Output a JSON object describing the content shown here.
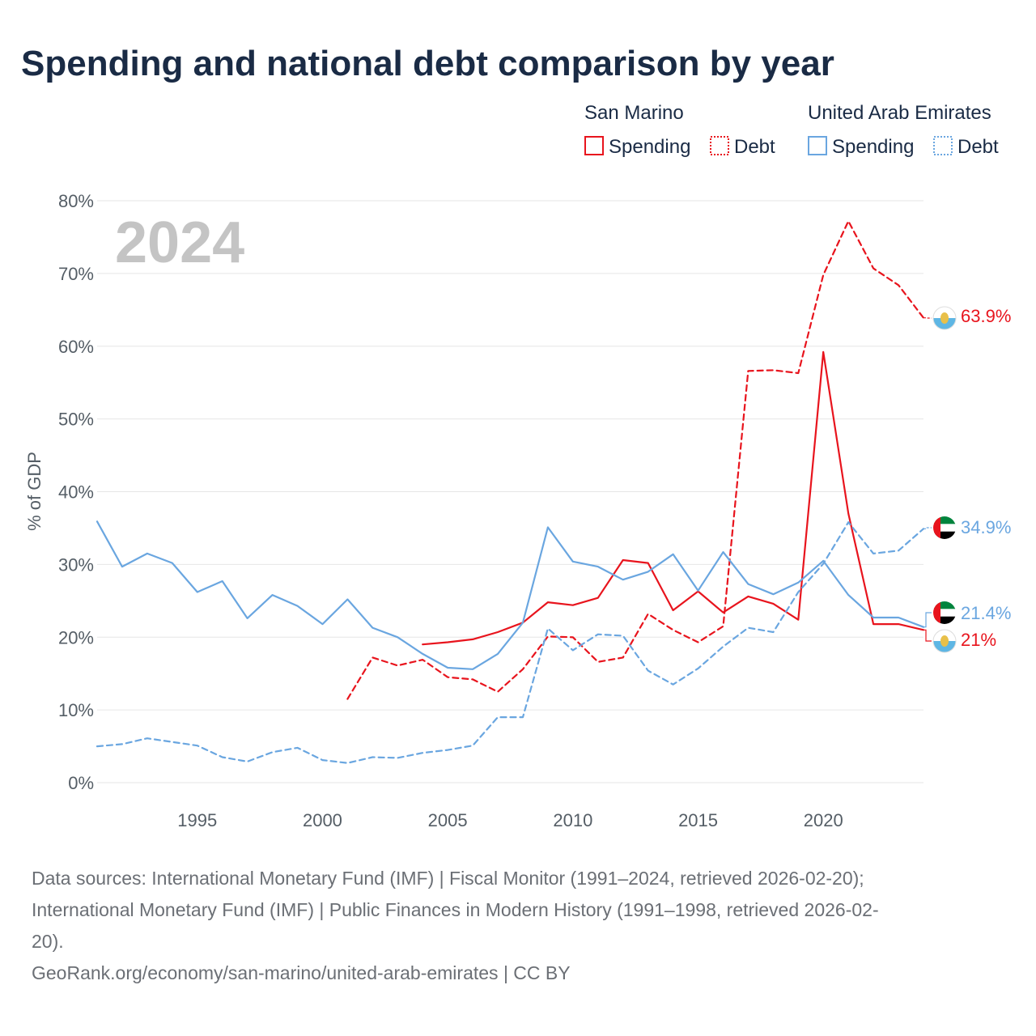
{
  "colors": {
    "san_marino": "#e8141d",
    "uae": "#6aa6e0",
    "title": "#1a2b45",
    "muted": "#555e66",
    "year": "#c4c4c4"
  },
  "legend": {
    "group1": "San Marino",
    "group2": "United Arab Emirates",
    "spending": "Spending",
    "debt": "Debt"
  },
  "year_label": "2024",
  "chart_data": {
    "type": "line",
    "title": "Spending and national debt comparison by year",
    "ylabel": "% of GDP",
    "xlabel": "",
    "xlim": [
      1991,
      2024
    ],
    "ylim": [
      0,
      80
    ],
    "yticks": [
      0,
      10,
      20,
      30,
      40,
      50,
      60,
      70,
      80
    ],
    "ytick_labels": [
      "0%",
      "10%",
      "20%",
      "30%",
      "40%",
      "50%",
      "60%",
      "70%",
      "80%"
    ],
    "xticks": [
      1995,
      2000,
      2005,
      2010,
      2015,
      2020
    ],
    "xtick_labels": [
      "1995",
      "2000",
      "2005",
      "2010",
      "2015",
      "2020"
    ],
    "grid": true,
    "legend_position": "top-right",
    "series": [
      {
        "name": "San Marino Spending",
        "country": "San Marino",
        "metric": "Spending",
        "color": "#e8141d",
        "dashed": false,
        "end_label": "21%",
        "x": [
          2004,
          2005,
          2006,
          2007,
          2008,
          2009,
          2010,
          2011,
          2012,
          2013,
          2014,
          2015,
          2016,
          2017,
          2018,
          2019,
          2020,
          2021,
          2022,
          2023,
          2024
        ],
        "y": [
          19.0,
          19.3,
          19.7,
          20.7,
          22.0,
          24.8,
          24.4,
          25.4,
          30.6,
          30.2,
          23.7,
          26.3,
          23.4,
          25.6,
          24.6,
          22.4,
          59.2,
          37.0,
          21.8,
          21.8,
          21.0
        ]
      },
      {
        "name": "San Marino Debt",
        "country": "San Marino",
        "metric": "Debt",
        "color": "#e8141d",
        "dashed": true,
        "end_label": "63.9%",
        "x": [
          2001,
          2002,
          2003,
          2004,
          2005,
          2006,
          2007,
          2008,
          2009,
          2010,
          2011,
          2012,
          2013,
          2014,
          2015,
          2016,
          2017,
          2018,
          2019,
          2020,
          2021,
          2022,
          2023,
          2024
        ],
        "y": [
          11.5,
          17.2,
          16.1,
          16.9,
          14.5,
          14.2,
          12.5,
          15.6,
          20.1,
          20.0,
          16.6,
          17.2,
          23.2,
          21.0,
          19.3,
          21.5,
          56.6,
          56.7,
          56.3,
          69.8,
          77.2,
          70.7,
          68.4,
          63.9
        ]
      },
      {
        "name": "United Arab Emirates Spending",
        "country": "United Arab Emirates",
        "metric": "Spending",
        "color": "#6aa6e0",
        "dashed": false,
        "end_label": "21.4%",
        "x": [
          1991,
          1992,
          1993,
          1994,
          1995,
          1996,
          1997,
          1998,
          1999,
          2000,
          2001,
          2002,
          2003,
          2004,
          2005,
          2006,
          2007,
          2008,
          2009,
          2010,
          2011,
          2012,
          2013,
          2014,
          2015,
          2016,
          2017,
          2018,
          2019,
          2020,
          2021,
          2022,
          2023,
          2024
        ],
        "y": [
          35.9,
          29.7,
          31.5,
          30.2,
          26.2,
          27.7,
          22.6,
          25.8,
          24.3,
          21.8,
          25.2,
          21.3,
          20.0,
          17.7,
          15.8,
          15.6,
          17.7,
          22.0,
          35.1,
          30.4,
          29.7,
          27.9,
          29.0,
          31.4,
          26.4,
          31.7,
          27.3,
          25.9,
          27.5,
          30.5,
          25.8,
          22.7,
          22.7,
          21.4
        ]
      },
      {
        "name": "United Arab Emirates Debt",
        "country": "United Arab Emirates",
        "metric": "Debt",
        "color": "#6aa6e0",
        "dashed": true,
        "end_label": "34.9%",
        "x": [
          1991,
          1992,
          1993,
          1994,
          1995,
          1996,
          1997,
          1998,
          1999,
          2000,
          2001,
          2002,
          2003,
          2004,
          2005,
          2006,
          2007,
          2008,
          2009,
          2010,
          2011,
          2012,
          2013,
          2014,
          2015,
          2016,
          2017,
          2018,
          2019,
          2020,
          2021,
          2022,
          2023,
          2024
        ],
        "y": [
          5.0,
          5.3,
          6.1,
          5.6,
          5.1,
          3.5,
          2.9,
          4.2,
          4.8,
          3.1,
          2.7,
          3.5,
          3.4,
          4.1,
          4.5,
          5.1,
          9.0,
          9.0,
          21.2,
          18.2,
          20.4,
          20.2,
          15.4,
          13.5,
          15.7,
          18.7,
          21.3,
          20.7,
          26.2,
          30.1,
          35.8,
          31.5,
          31.9,
          34.9
        ]
      }
    ]
  },
  "footer": {
    "line1": "Data sources: International Monetary Fund (IMF) | Fiscal Monitor (1991–2024, retrieved 2026-02-20);",
    "line2": "International Monetary Fund (IMF) | Public Finances in Modern History (1991–1998, retrieved 2026-02-",
    "line3": "20).",
    "line4": "GeoRank.org/economy/san-marino/united-arab-emirates | CC BY"
  }
}
